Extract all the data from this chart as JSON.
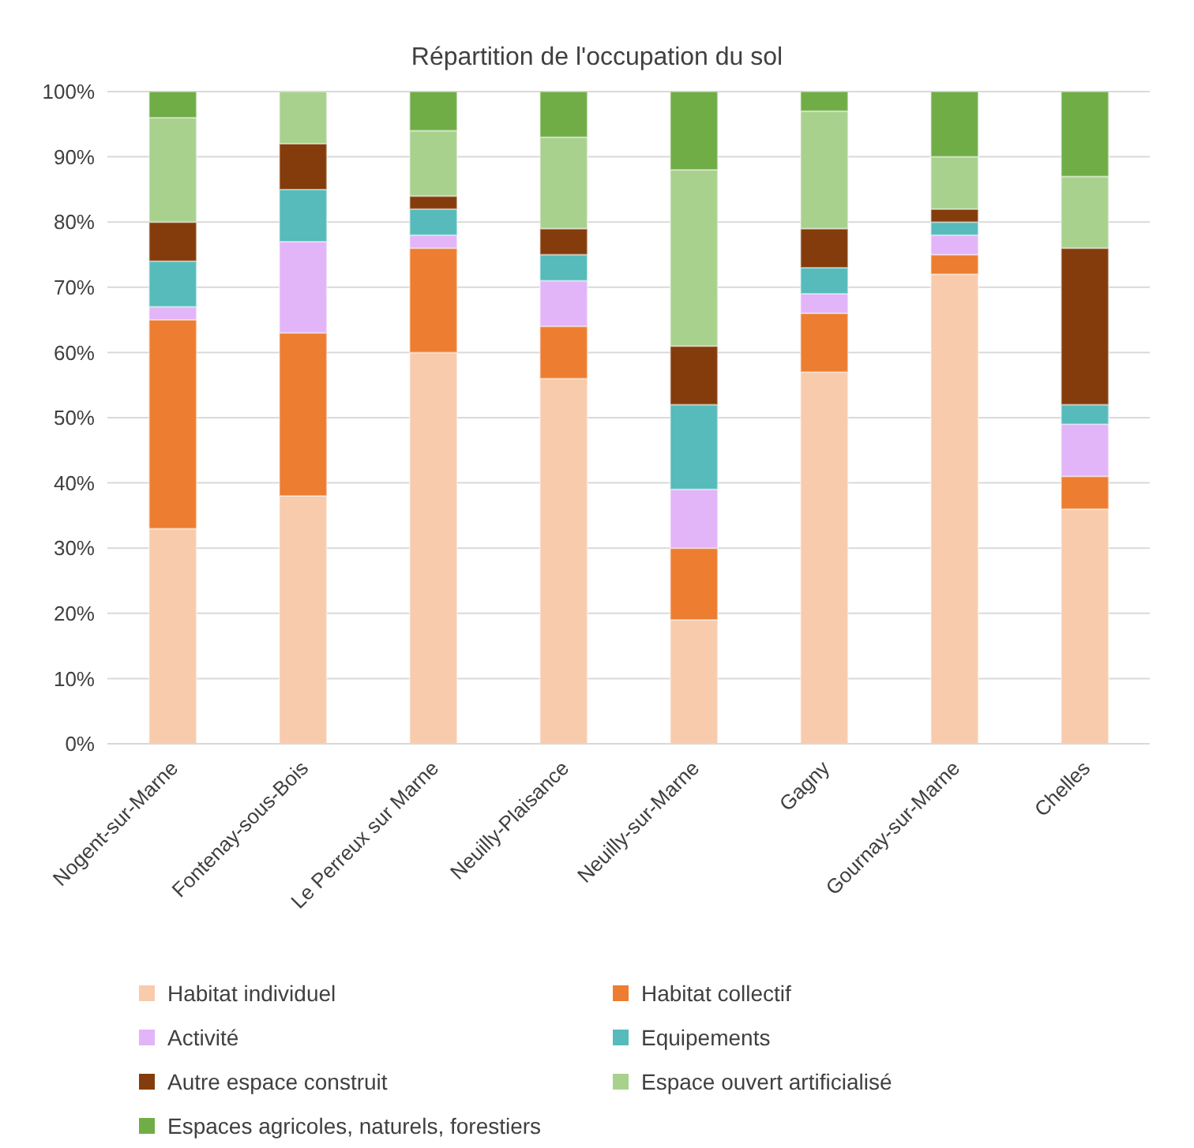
{
  "chart_data": {
    "type": "bar",
    "title": "Répartition de l'occupation du sol",
    "stacked": true,
    "categories": [
      "Nogent-sur-Marne",
      "Fontenay-sous-Bois",
      "Le Perreux sur Marne",
      "Neuilly-Plaisance",
      "Neuilly-sur-Marne",
      "Gagny",
      "Gournay-sur-Marne",
      "Chelles"
    ],
    "series": [
      {
        "name": "Habitat individuel",
        "color": "#f8cbad",
        "values": [
          33,
          38,
          60,
          56,
          19,
          57,
          72,
          36
        ]
      },
      {
        "name": "Habitat collectif",
        "color": "#ed7d31",
        "values": [
          32,
          25,
          16,
          8,
          11,
          9,
          3,
          5
        ]
      },
      {
        "name": "Activité",
        "color": "#e2b4f8",
        "values": [
          2,
          14,
          2,
          7,
          9,
          3,
          3,
          8
        ]
      },
      {
        "name": "Equipements",
        "color": "#56bbba",
        "values": [
          7,
          8,
          4,
          4,
          13,
          4,
          2,
          3
        ]
      },
      {
        "name": "Autre espace construit",
        "color": "#843c0c",
        "values": [
          6,
          7,
          2,
          4,
          9,
          6,
          2,
          24
        ]
      },
      {
        "name": "Espace ouvert artificialisé",
        "color": "#a9d18e",
        "values": [
          16,
          8,
          10,
          14,
          27,
          18,
          8,
          11
        ]
      },
      {
        "name": "Espaces agricoles, naturels, forestiers",
        "color": "#70ad47",
        "values": [
          4,
          0,
          6,
          7,
          12,
          3,
          10,
          13
        ]
      }
    ],
    "ylim": [
      0,
      100
    ],
    "yticks": [
      {
        "value": 0,
        "label": "0%"
      },
      {
        "value": 10,
        "label": "10%"
      },
      {
        "value": 20,
        "label": "20%"
      },
      {
        "value": 30,
        "label": "30%"
      },
      {
        "value": 40,
        "label": "40%"
      },
      {
        "value": 50,
        "label": "50%"
      },
      {
        "value": 60,
        "label": "60%"
      },
      {
        "value": 70,
        "label": "70%"
      },
      {
        "value": 80,
        "label": "80%"
      },
      {
        "value": 90,
        "label": "90%"
      },
      {
        "value": 100,
        "label": "100%"
      }
    ],
    "grid": "y",
    "legend": "bottom"
  }
}
